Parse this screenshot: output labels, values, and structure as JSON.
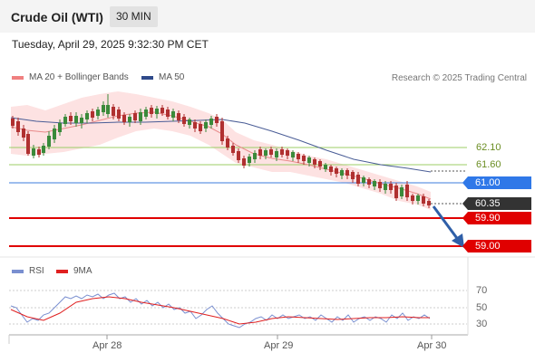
{
  "header": {
    "title": "Crude Oil (WTI)",
    "interval": "30 MIN",
    "datetime": "Tuesday, April 29, 2025 9:32:30 PM CET"
  },
  "legend": {
    "ma20_label": "MA 20 + Bollinger Bands",
    "ma50_label": "MA 50",
    "credit": "Research © 2025 Trading Central"
  },
  "levels": {
    "r2": "62.10",
    "r1": "61.60",
    "pivot": "61.00",
    "last": "60.35",
    "s1": "59.90",
    "s2": "59.00"
  },
  "rsi_panel": {
    "rsi_label": "RSI",
    "ma_label": "9MA",
    "ticks": [
      "70",
      "50",
      "30"
    ]
  },
  "x_axis": {
    "dates": [
      "Apr 28",
      "Apr 29",
      "Apr 30"
    ]
  },
  "colors": {
    "green_level": "#8bc34a",
    "pivot_blue": "#3b7ddd",
    "red_level": "#e00000",
    "last_price": "#333333",
    "ma50": "#4a5d96",
    "band_fill": "#fde0e0",
    "ma20": "#e88a8a",
    "candle_up": "#3a8a3a",
    "candle_down": "#b03030",
    "arrow": "#2f5fa8"
  },
  "chart_data": {
    "type": "line",
    "title": "Crude Oil (WTI)",
    "price_levels": {
      "62.10": "green",
      "61.60": "green",
      "61.00": "blue",
      "60.35": "last",
      "59.90": "red",
      "59.00": "red"
    },
    "price_approx": [
      62.8,
      62.9,
      62.2,
      61.9,
      62.0,
      62.4,
      62.6,
      62.8,
      63.1,
      63.3,
      63.2,
      63.0,
      62.9,
      62.8,
      62.6,
      62.5,
      62.4,
      62.6,
      61.9,
      61.7,
      61.8,
      61.9,
      61.95,
      61.7,
      61.5,
      61.3,
      61.1,
      61.0,
      60.9,
      60.8,
      60.7,
      60.5,
      60.35
    ],
    "ma50_approx": [
      62.8,
      62.75,
      62.7,
      62.68,
      62.7,
      62.7,
      62.72,
      62.72,
      62.7,
      62.68,
      62.65,
      62.6,
      62.5,
      62.4,
      62.25,
      62.1,
      61.9,
      61.7,
      61.5,
      61.3,
      61.2
    ],
    "rsi_approx": [
      50,
      38,
      40,
      52,
      60,
      66,
      64,
      60,
      55,
      52,
      48,
      44,
      40,
      36,
      35,
      34,
      40,
      38,
      35,
      36,
      38,
      37,
      38,
      37,
      36,
      35,
      36
    ],
    "rsi_ticks": [
      70,
      50,
      30
    ],
    "x_tick_labels": [
      "Apr 28",
      "Apr 29",
      "Apr 30"
    ]
  }
}
